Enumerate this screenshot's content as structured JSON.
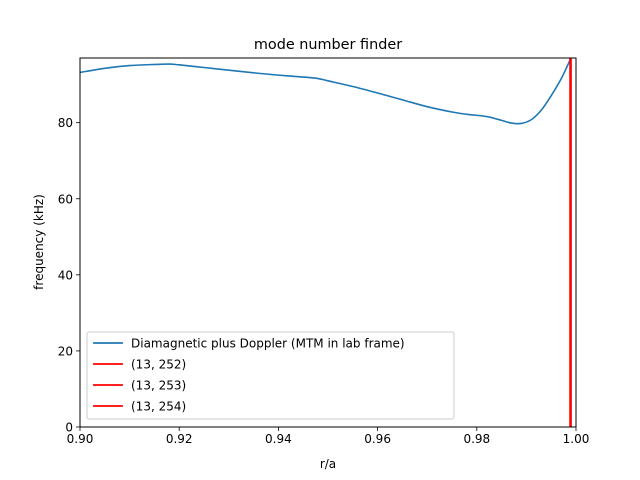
{
  "chart_data": {
    "type": "line",
    "title": "mode number finder",
    "xlabel": "r/a",
    "ylabel": "frequency (kHz)",
    "xlim": [
      0.9,
      1.0
    ],
    "ylim": [
      0,
      97
    ],
    "xticks": [
      0.9,
      0.92,
      0.94,
      0.96,
      0.98,
      1.0
    ],
    "xtick_labels": [
      "0.90",
      "0.92",
      "0.94",
      "0.96",
      "0.98",
      "1.00"
    ],
    "yticks": [
      0,
      20,
      40,
      60,
      80
    ],
    "ytick_labels": [
      "0",
      "20",
      "40",
      "60",
      "80"
    ],
    "grid": false,
    "legend_position": "lower-left",
    "series": [
      {
        "name": "Diamagnetic plus Doppler (MTM in lab frame)",
        "kind": "curve",
        "color": "#1f77b4",
        "x": [
          0.9,
          0.905,
          0.91,
          0.915,
          0.918,
          0.92,
          0.925,
          0.93,
          0.935,
          0.94,
          0.945,
          0.948,
          0.95,
          0.955,
          0.96,
          0.965,
          0.97,
          0.975,
          0.978,
          0.982,
          0.985,
          0.987,
          0.989,
          0.991,
          0.993,
          0.995,
          0.997,
          0.999
        ],
        "y": [
          93.2,
          94.3,
          95.0,
          95.3,
          95.4,
          95.2,
          94.5,
          93.8,
          93.1,
          92.5,
          92.0,
          91.6,
          91.0,
          89.5,
          87.8,
          86.0,
          84.2,
          82.8,
          82.2,
          81.6,
          80.6,
          79.9,
          79.8,
          80.8,
          83.3,
          87.1,
          91.5,
          97.0
        ]
      },
      {
        "name": "(13, 252)",
        "kind": "vline",
        "color": "#ff0000",
        "x": 0.9988
      },
      {
        "name": "(13, 253)",
        "kind": "vline",
        "color": "#ff0000",
        "x": 0.9989
      },
      {
        "name": "(13, 254)",
        "kind": "vline",
        "color": "#ff0000",
        "x": 0.999
      }
    ]
  }
}
